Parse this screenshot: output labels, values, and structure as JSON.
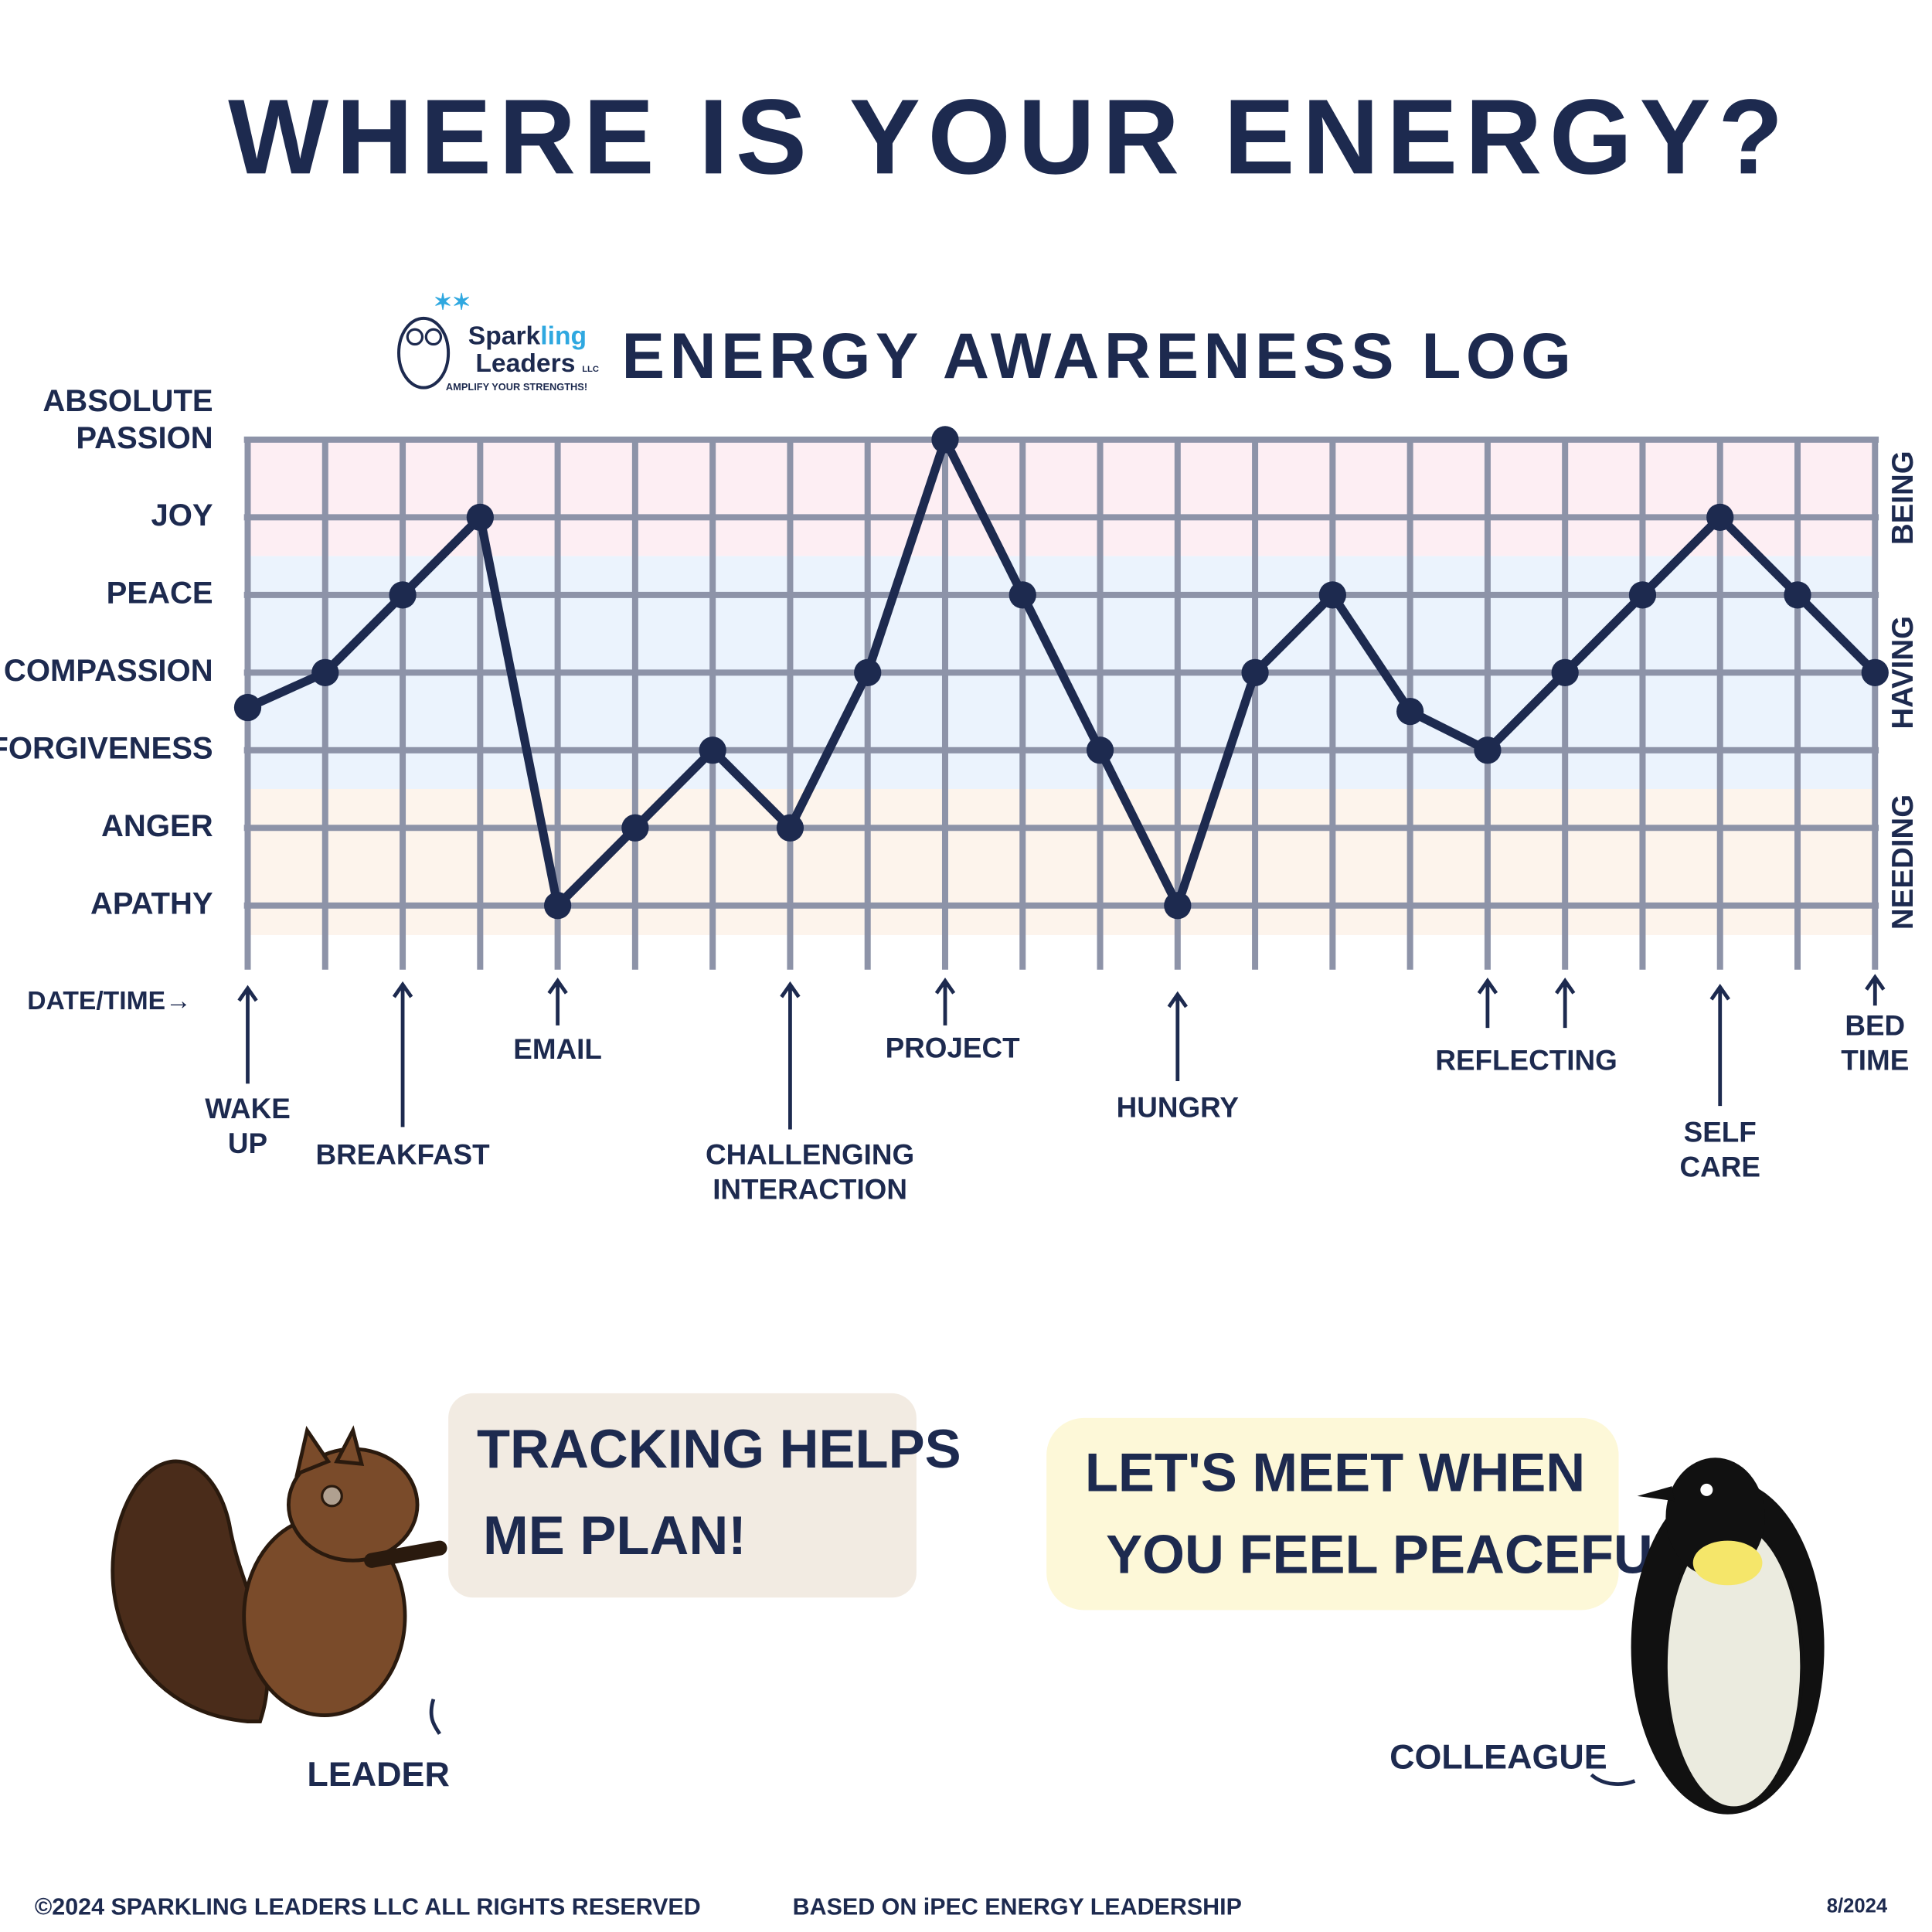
{
  "title": "WHERE IS YOUR ENERGY?",
  "logo": {
    "name_parts": [
      "Spark",
      "ling"
    ],
    "line2": "Leaders",
    "suffix": "LLC",
    "tagline": "AMPLIFY YOUR STRENGTHS!"
  },
  "chart_data": {
    "type": "line",
    "title": "ENERGY AWARENESS LOG",
    "x_label": "DATE/TIME→",
    "x": [
      0,
      1,
      2,
      3,
      4,
      5,
      6,
      7,
      8,
      9,
      10,
      11,
      12,
      13,
      14,
      15,
      16,
      17,
      18,
      19,
      20,
      21
    ],
    "values": [
      3.55,
      4,
      5,
      6,
      1,
      2,
      3,
      2,
      4,
      7,
      5,
      3,
      1,
      4,
      5,
      3.5,
      3,
      4,
      5,
      6,
      5,
      4
    ],
    "color": "#1d2a4f",
    "xlim": [
      0,
      21
    ],
    "xticks": [
      0,
      1,
      2,
      3,
      4,
      5,
      6,
      7,
      8,
      9,
      10,
      11,
      12,
      13,
      14,
      15,
      16,
      17,
      18,
      19,
      20,
      21
    ],
    "ylim": [
      0.62,
      7
    ],
    "yticks": [
      {
        "value": 1,
        "label": "APATHY"
      },
      {
        "value": 2,
        "label": "ANGER"
      },
      {
        "value": 3,
        "label": "FORGIVENESS"
      },
      {
        "value": 4,
        "label": "COMPASSION"
      },
      {
        "value": 5,
        "label": "PEACE"
      },
      {
        "value": 6,
        "label": "JOY"
      },
      {
        "value": 7,
        "label": "ABSOLUTE PASSION"
      }
    ],
    "grid": true,
    "bands": [
      {
        "name": "BEING",
        "from": 5.5,
        "to": 7,
        "color": "#fdeef3"
      },
      {
        "name": "HAVING",
        "from": 2.5,
        "to": 5.5,
        "color": "#ebf3fd"
      },
      {
        "name": "NEEDING",
        "from": 0.62,
        "to": 2.5,
        "color": "#fdf4ec"
      }
    ],
    "annotations": [
      {
        "lines": [
          "WAKE",
          "UP"
        ],
        "x": [
          0
        ]
      },
      {
        "lines": [
          "BREAKFAST"
        ],
        "x": [
          2
        ]
      },
      {
        "lines": [
          "EMAIL"
        ],
        "x": [
          4
        ]
      },
      {
        "lines": [
          "CHALLENGING",
          "INTERACTION"
        ],
        "x": [
          7
        ]
      },
      {
        "lines": [
          "PROJECT"
        ],
        "x": [
          9
        ]
      },
      {
        "lines": [
          "HUNGRY"
        ],
        "x": [
          12
        ]
      },
      {
        "lines": [
          "REFLECTING"
        ],
        "x": [
          16,
          17
        ]
      },
      {
        "lines": [
          "SELF",
          "CARE"
        ],
        "x": [
          19
        ]
      },
      {
        "lines": [
          "BED",
          "TIME"
        ],
        "x": [
          21
        ]
      }
    ]
  },
  "bubbles": [
    {
      "lines": [
        "TRACKING HELPS",
        "ME PLAN!"
      ]
    },
    {
      "lines": [
        "LET'S MEET WHEN",
        "YOU FEEL PEACEFUL"
      ]
    }
  ],
  "characters": [
    "LEADER",
    "COLLEAGUE"
  ],
  "footer": {
    "copyright": "©2024 SPARKLING LEADERS LLC ALL RIGHTS RESERVED",
    "source": "BASED ON iPEC ENERGY LEADERSHIP",
    "date": "8/2024"
  }
}
